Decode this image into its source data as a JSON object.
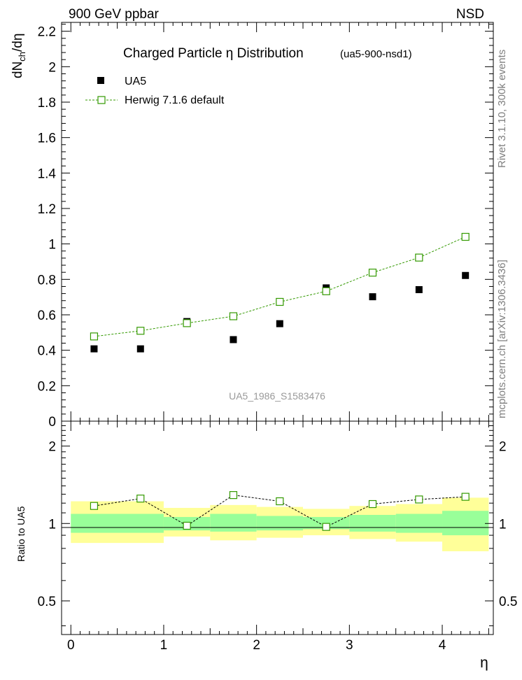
{
  "header": {
    "left": "900 GeV ppbar",
    "right": "NSD"
  },
  "side_text": {
    "top": "Rivet 3.1.10,  300k events",
    "bottom": "mcplots.cern.ch [arXiv:1306.3436]"
  },
  "colors": {
    "data": "#000000",
    "mc": "#339900",
    "band_inner": "#99ff99",
    "band_outer": "#ffff99",
    "watermark": "#999999"
  },
  "chart_data": [
    {
      "type": "scatter",
      "panel": "main",
      "title": "Charged Particle  η Distribution",
      "subtitle": "(ua5-900-nsd1)",
      "ylabel_main": "dN",
      "ylabel_sub": "ch",
      "ylabel_tail": "/dη",
      "watermark": "UA5_1986_S1583476",
      "xlim": [
        -0.1,
        4.55
      ],
      "ylim": [
        0,
        2.25
      ],
      "yticks": [
        0,
        0.2,
        0.4,
        0.6,
        0.8,
        1.0,
        1.2,
        1.4,
        1.6,
        1.8,
        2.0,
        2.2
      ],
      "ytick_labels": [
        "0",
        "0.2",
        "0.4",
        "0.6",
        "0.8",
        "1",
        "1.2",
        "1.4",
        "1.6",
        "1.8",
        "2",
        "2.2"
      ],
      "series": [
        {
          "name": "UA5",
          "style": "filled-square",
          "x": [
            0.25,
            0.75,
            1.25,
            1.75,
            2.25,
            2.75,
            3.25,
            3.75,
            4.25
          ],
          "values": [
            0.408,
            0.408,
            0.562,
            0.46,
            0.55,
            0.752,
            0.702,
            0.742,
            0.822
          ]
        },
        {
          "name": "Herwig 7.1.6 default",
          "style": "open-square-dashed-line",
          "x": [
            0.25,
            0.75,
            1.25,
            1.75,
            2.25,
            2.75,
            3.25,
            3.75,
            4.25
          ],
          "values": [
            0.478,
            0.51,
            0.553,
            0.592,
            0.673,
            0.733,
            0.838,
            0.923,
            1.04
          ]
        }
      ]
    },
    {
      "type": "line",
      "panel": "ratio",
      "ylabel": "Ratio to UA5",
      "xlabel": "η",
      "xlim": [
        -0.1,
        4.55
      ],
      "ylim": [
        0.37,
        2.5
      ],
      "log_y": true,
      "yticks": [
        0.5,
        1,
        2
      ],
      "ytick_labels": [
        "0.5",
        "1",
        "2"
      ],
      "xticks": [
        0,
        1,
        2,
        3,
        4
      ],
      "xtick_labels": [
        "0",
        "1",
        "2",
        "3",
        "4"
      ],
      "bands": [
        {
          "x0": 0.0,
          "x1": 1.0,
          "inner": [
            0.92,
            1.09
          ],
          "outer": [
            0.84,
            1.22
          ]
        },
        {
          "x0": 1.0,
          "x1": 1.5,
          "inner": [
            0.94,
            1.06
          ],
          "outer": [
            0.89,
            1.15
          ]
        },
        {
          "x0": 1.5,
          "x1": 2.0,
          "inner": [
            0.93,
            1.09
          ],
          "outer": [
            0.86,
            1.18
          ]
        },
        {
          "x0": 2.0,
          "x1": 2.5,
          "inner": [
            0.94,
            1.07
          ],
          "outer": [
            0.88,
            1.16
          ]
        },
        {
          "x0": 2.5,
          "x1": 3.0,
          "inner": [
            0.95,
            1.06
          ],
          "outer": [
            0.9,
            1.14
          ]
        },
        {
          "x0": 3.0,
          "x1": 3.5,
          "inner": [
            0.93,
            1.08
          ],
          "outer": [
            0.87,
            1.17
          ]
        },
        {
          "x0": 3.5,
          "x1": 4.0,
          "inner": [
            0.92,
            1.09
          ],
          "outer": [
            0.85,
            1.19
          ]
        },
        {
          "x0": 4.0,
          "x1": 4.5,
          "inner": [
            0.9,
            1.12
          ],
          "outer": [
            0.78,
            1.26
          ]
        }
      ],
      "series": [
        {
          "name": "Herwig 7.1.6 default / UA5",
          "x": [
            0.25,
            0.75,
            1.25,
            1.75,
            2.25,
            2.75,
            3.25,
            3.75,
            4.25
          ],
          "values": [
            1.17,
            1.25,
            0.98,
            1.29,
            1.22,
            0.97,
            1.19,
            1.24,
            1.27
          ]
        }
      ]
    }
  ]
}
